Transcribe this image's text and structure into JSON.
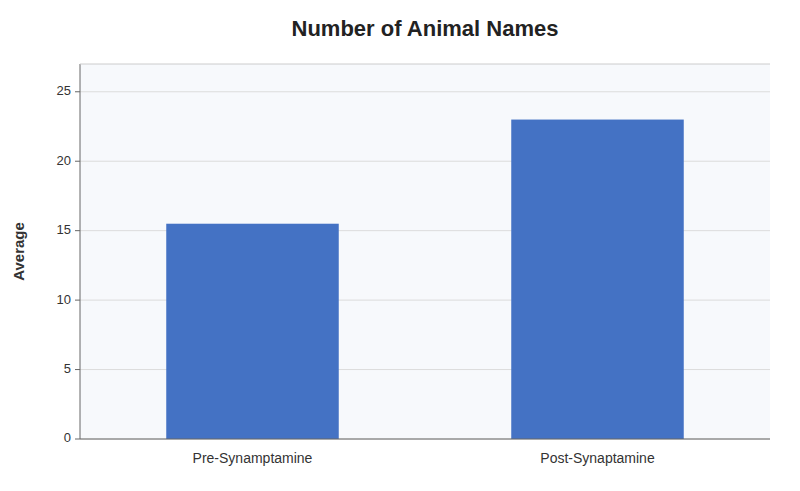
{
  "chart_data": {
    "type": "bar",
    "title": "Number of Animal Names",
    "ylabel": "Average",
    "categories": [
      "Pre-Synamptamine",
      "Post-Synaptamine"
    ],
    "values": [
      15.5,
      23.0
    ],
    "color": "#4472C4",
    "ylim": [
      0,
      27
    ],
    "yticks": [
      0,
      5,
      10,
      15,
      20,
      25
    ],
    "grid": true
  }
}
